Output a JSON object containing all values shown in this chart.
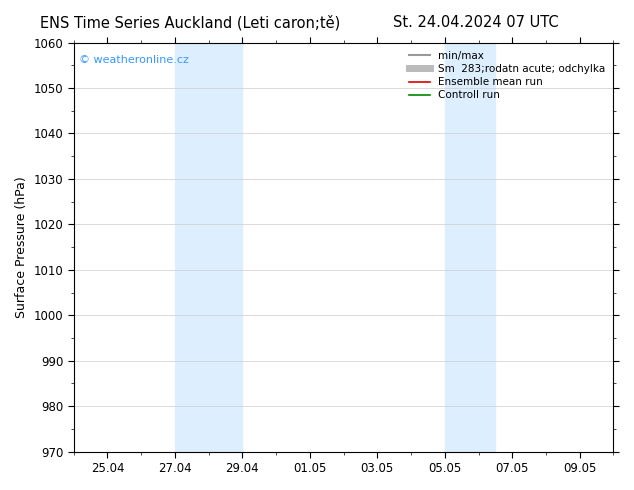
{
  "title_left": "ENS Time Series Auckland (Leti caron;tě)",
  "title_right": "St. 24.04.2024 07 UTC",
  "ylabel": "Surface Pressure (hPa)",
  "ylim": [
    970,
    1060
  ],
  "yticks": [
    970,
    980,
    990,
    1000,
    1010,
    1020,
    1030,
    1040,
    1050,
    1060
  ],
  "xlim": [
    0,
    16
  ],
  "xtick_labels": [
    "25.04",
    "27.04",
    "29.04",
    "01.05",
    "03.05",
    "05.05",
    "07.05",
    "09.05"
  ],
  "xtick_positions": [
    1,
    3,
    5,
    7,
    9,
    11,
    13,
    15
  ],
  "shaded_regions": [
    {
      "x_start": 3,
      "x_end": 5,
      "color": "#ddeeff"
    },
    {
      "x_start": 11,
      "x_end": 12.5,
      "color": "#ddeeff"
    }
  ],
  "watermark_text": "© weatheronline.cz",
  "watermark_color": "#3399ff",
  "legend_entries": [
    {
      "label": "min/max",
      "color": "#999999",
      "lw": 1.5,
      "style": "solid"
    },
    {
      "label": "Sm  283;rodatn acute; odchylka",
      "color": "#bbbbbb",
      "lw": 5,
      "style": "solid"
    },
    {
      "label": "Ensemble mean run",
      "color": "#dd0000",
      "lw": 1.2,
      "style": "solid"
    },
    {
      "label": "Controll run",
      "color": "#008800",
      "lw": 1.2,
      "style": "solid"
    }
  ],
  "bg_color": "#ffffff",
  "grid_color": "#cccccc",
  "title_fontsize": 10.5,
  "tick_fontsize": 8.5,
  "legend_fontsize": 7.5,
  "ylabel_fontsize": 9
}
